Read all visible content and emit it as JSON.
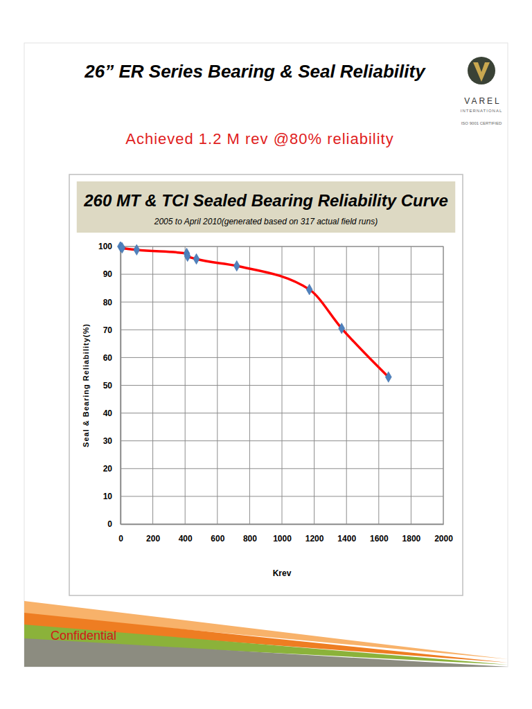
{
  "slide": {
    "title": "26” ER Series Bearing & Seal Reliability",
    "subtitle": "Achieved 1.2 M rev @80% reliability",
    "logo": {
      "name": "VAREL",
      "tagline": "INTERNATIONAL",
      "certification": "ISO 9001 CERTIFIED"
    },
    "footer": "Confidential"
  },
  "chart_data": {
    "type": "line",
    "title": "260 MT & TCI Sealed Bearing Reliability Curve",
    "subtitle": "2005 to April 2010(generated based on 317 actual field runs)",
    "x_label": "Krev",
    "y_label": "Seal & Bearing Reliability(%)",
    "x": [
      0,
      10,
      100,
      410,
      415,
      470,
      720,
      1170,
      1370,
      1660
    ],
    "series": [
      {
        "color": "#ff0000",
        "marker": "diamond",
        "line_style": "solid",
        "values": [
          100,
          99.5,
          98.8,
          97.5,
          96.5,
          95.5,
          93,
          84.5,
          70.5,
          53
        ]
      }
    ],
    "xlim": [
      0,
      2000
    ],
    "xticks": [
      0,
      200,
      400,
      600,
      800,
      1000,
      1200,
      1400,
      1600,
      1800,
      2000
    ],
    "ylim": [
      0,
      100
    ],
    "yticks": [
      0,
      10,
      20,
      30,
      40,
      50,
      60,
      70,
      80,
      90,
      100
    ],
    "grid": true
  }
}
